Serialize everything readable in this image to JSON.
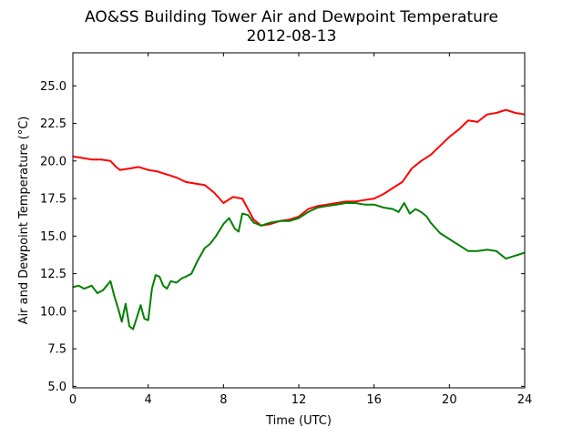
{
  "chart_data": {
    "type": "line",
    "title": "AO&SS Building Tower Air and Dewpoint Temperature",
    "subtitle": "2012-08-13",
    "xlabel": "Time (UTC)",
    "ylabel": "Air and Dewpoint Temperature (°C)",
    "xlim": [
      0,
      24
    ],
    "ylim": [
      4.9,
      27.2
    ],
    "xticks": [
      0,
      4,
      8,
      12,
      16,
      20,
      24
    ],
    "xtick_labels": [
      "0",
      "4",
      "8",
      "12",
      "16",
      "20",
      "24"
    ],
    "yticks": [
      5.0,
      7.5,
      10.0,
      12.5,
      15.0,
      17.5,
      20.0,
      22.5,
      25.0
    ],
    "ytick_labels": [
      "5.0",
      "7.5",
      "10.0",
      "12.5",
      "15.0",
      "17.5",
      "20.0",
      "22.5",
      "25.0"
    ],
    "grid": false,
    "legend": "none",
    "series": [
      {
        "color": "#ff0000",
        "x": [
          0,
          0.5,
          1,
          1.5,
          2,
          2.3,
          2.5,
          3,
          3.5,
          4,
          4.5,
          5,
          5.5,
          6,
          6.5,
          7,
          7.5,
          8,
          8.5,
          9,
          9.3,
          9.6,
          10,
          10.5,
          11,
          11.5,
          12,
          12.5,
          13,
          13.5,
          14,
          14.5,
          15,
          15.5,
          16,
          16.5,
          17,
          17.5,
          18,
          18.5,
          19,
          19.5,
          20,
          20.5,
          21,
          21.5,
          22,
          22.5,
          23,
          23.5,
          24
        ],
        "values": [
          20.3,
          20.2,
          20.1,
          20.1,
          20.0,
          19.6,
          19.4,
          19.5,
          19.6,
          19.4,
          19.3,
          19.1,
          18.9,
          18.6,
          18.5,
          18.4,
          17.9,
          17.2,
          17.6,
          17.5,
          16.8,
          16.1,
          15.7,
          15.8,
          16.0,
          16.1,
          16.3,
          16.8,
          17.0,
          17.1,
          17.2,
          17.3,
          17.3,
          17.4,
          17.5,
          17.8,
          18.2,
          18.6,
          19.5,
          20.0,
          20.4,
          21.0,
          21.6,
          22.1,
          22.7,
          22.6,
          23.1,
          23.2,
          23.4,
          23.2,
          23.1
        ]
      },
      {
        "color": "#008000",
        "x": [
          0,
          0.3,
          0.6,
          1,
          1.3,
          1.6,
          2,
          2.2,
          2.4,
          2.6,
          2.8,
          3,
          3.2,
          3.4,
          3.6,
          3.8,
          4,
          4.2,
          4.4,
          4.6,
          4.8,
          5,
          5.2,
          5.5,
          5.8,
          6,
          6.3,
          6.6,
          7,
          7.3,
          7.6,
          8,
          8.3,
          8.6,
          8.8,
          9,
          9.3,
          9.6,
          10,
          10.5,
          11,
          11.5,
          12,
          12.5,
          13,
          13.5,
          14,
          14.5,
          15,
          15.5,
          16,
          16.5,
          17,
          17.3,
          17.6,
          17.9,
          18.2,
          18.5,
          18.8,
          19,
          19.5,
          20,
          20.5,
          21,
          21.5,
          22,
          22.5,
          23,
          23.5,
          24
        ],
        "values": [
          11.6,
          11.7,
          11.5,
          11.7,
          11.2,
          11.4,
          12.0,
          11.0,
          10.2,
          9.3,
          10.5,
          9.0,
          8.8,
          9.6,
          10.4,
          9.5,
          9.4,
          11.5,
          12.4,
          12.3,
          11.7,
          11.5,
          12.0,
          11.9,
          12.2,
          12.3,
          12.5,
          13.3,
          14.2,
          14.5,
          15.0,
          15.8,
          16.2,
          15.5,
          15.3,
          16.5,
          16.4,
          15.9,
          15.7,
          15.9,
          16.0,
          16.0,
          16.2,
          16.6,
          16.9,
          17.0,
          17.1,
          17.2,
          17.2,
          17.1,
          17.1,
          16.9,
          16.8,
          16.6,
          17.2,
          16.5,
          16.8,
          16.6,
          16.3,
          15.9,
          15.2,
          14.8,
          14.4,
          14.0,
          14.0,
          14.1,
          14.0,
          13.5,
          13.7,
          13.9
        ]
      }
    ]
  }
}
